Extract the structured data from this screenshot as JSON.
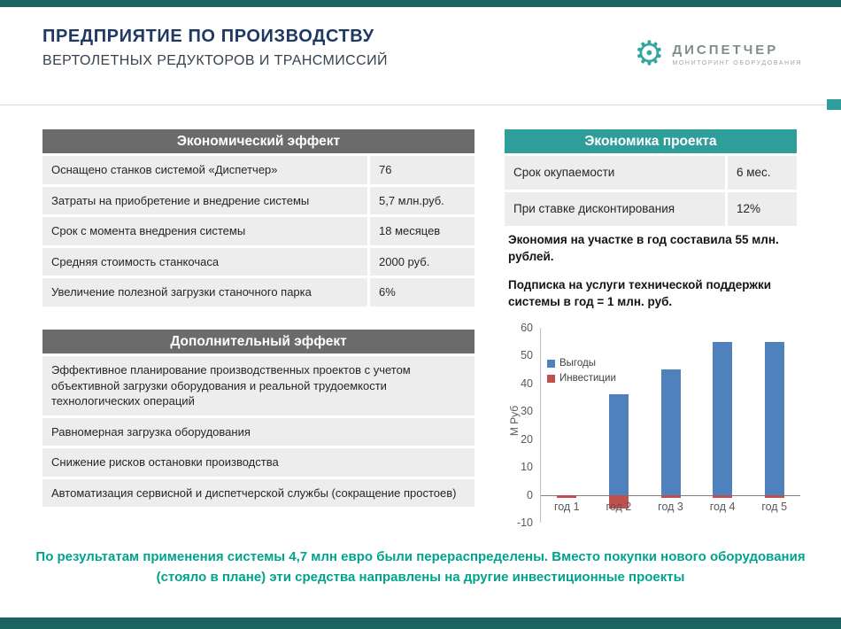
{
  "header": {
    "title_line1": "ПРЕДПРИЯТИЕ ПО ПРОИЗВОДСТВУ",
    "title_line2": "ВЕРТОЛЕТНЫХ РЕДУКТОРОВ И ТРАНСМИССИЙ",
    "logo": {
      "name": "ДИСПЕТЧЕР",
      "tagline": "МОНИТОРИНГ ОБОРУДОВАНИЯ",
      "gear_icon": "gear-icon"
    }
  },
  "economic_effect": {
    "title": "Экономический эффект",
    "rows": [
      {
        "label": "Оснащено станков системой «Диспетчер»",
        "value": "76"
      },
      {
        "label": "Затраты на приобретение и внедрение системы",
        "value": "5,7 млн.руб."
      },
      {
        "label": "Срок с момента внедрения системы",
        "value": "18 месяцев"
      },
      {
        "label": "Средняя стоимость станкочаса",
        "value": "2000 руб."
      },
      {
        "label": "Увеличение полезной загрузки станочного парка",
        "value": "6%"
      }
    ]
  },
  "additional_effect": {
    "title": "Дополнительный эффект",
    "rows": [
      {
        "label": "Эффективное планирование производственных проектов с учетом объективной загрузки оборудования и реальной трудоемкости технологических операций"
      },
      {
        "label": "Равномерная загрузка оборудования"
      },
      {
        "label": "Снижение рисков остановки производства"
      },
      {
        "label": "Автоматизация сервисной и диспетчерской службы (сокращение простоев)"
      }
    ]
  },
  "project_economics": {
    "title": "Экономика проекта",
    "rows": [
      {
        "label": "Срок окупаемости",
        "value": "6 мес."
      },
      {
        "label": "При ставке дисконтирования",
        "value": "12%"
      }
    ]
  },
  "notes": {
    "note1": "Экономия на участке в год составила 55 млн. рублей.",
    "note2": "Подписка на услуги технической поддержки системы в год = 1 млн. руб."
  },
  "chart_data": {
    "type": "bar",
    "categories": [
      "год 1",
      "год 2",
      "год 3",
      "год 4",
      "год 5"
    ],
    "series": [
      {
        "name": "Выгоды",
        "color": "#4f81bd",
        "values": [
          0,
          36,
          45,
          55,
          55
        ]
      },
      {
        "name": "Инвестиции",
        "color": "#c0504d",
        "values": [
          -1,
          -5,
          -1,
          -1,
          -1
        ]
      }
    ],
    "title": "",
    "xlabel": "",
    "ylabel": "М Руб",
    "ylim": [
      -10,
      60
    ],
    "yticks": [
      60,
      50,
      40,
      30,
      20,
      10,
      0,
      -10
    ],
    "legend_position": "top-left",
    "grid": false
  },
  "footer_note": "По результатам применения системы  4,7 млн евро были перераспределены. Вместо покупки нового оборудования (стояло в плане) эти средства направлены на другие инвестиционные проекты",
  "colors": {
    "accent_teal": "#2f9e9b",
    "dark_teal": "#1b6361",
    "navy": "#1f3864",
    "table_header_gray": "#6b6b6b",
    "bar_blue": "#4f81bd",
    "bar_red": "#c0504d",
    "footer_text": "#00a38d"
  }
}
